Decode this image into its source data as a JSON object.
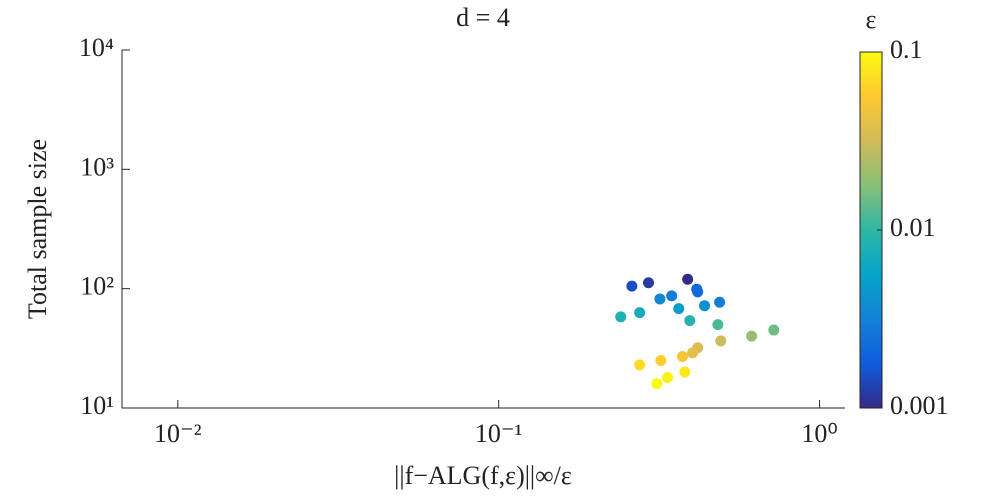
{
  "chart_data": {
    "type": "scatter",
    "title": "d = 4",
    "x_label": "||f−ALG(f,ε)||∞/ε",
    "y_label": "Total sample size",
    "log_x": true,
    "log_y": true,
    "xlim": [
      0.0067,
      1.2
    ],
    "ylim": [
      10,
      10000
    ],
    "xticks": [
      {
        "value": 0.01,
        "label": "10⁻²"
      },
      {
        "value": 0.1,
        "label": "10⁻¹"
      },
      {
        "value": 1,
        "label": "10⁰"
      }
    ],
    "yticks": [
      {
        "value": 10,
        "label": "10¹"
      },
      {
        "value": 100,
        "label": "10²"
      },
      {
        "value": 1000,
        "label": "10³"
      },
      {
        "value": 10000,
        "label": "10⁴"
      }
    ],
    "x": [
      0.388,
      0.293,
      0.26,
      0.414,
      0.417,
      0.346,
      0.318,
      0.488,
      0.438,
      0.364,
      0.275,
      0.24,
      0.394,
      0.482,
      0.72,
      0.614,
      0.492,
      0.417,
      0.402,
      0.374,
      0.32,
      0.275,
      0.38,
      0.336,
      0.311
    ],
    "values": [
      120,
      112,
      105,
      99,
      94,
      87,
      82,
      77,
      72,
      68,
      63,
      58,
      54,
      50,
      45,
      40,
      36.5,
      32,
      29,
      27,
      25,
      23,
      20,
      18,
      16
    ],
    "color_values": [
      0.001,
      0.0012,
      0.0015,
      0.002,
      0.0022,
      0.003,
      0.0035,
      0.003,
      0.004,
      0.005,
      0.007,
      0.008,
      0.009,
      0.012,
      0.015,
      0.02,
      0.03,
      0.035,
      0.04,
      0.05,
      0.06,
      0.07,
      0.08,
      0.09,
      0.1
    ],
    "colorbar": {
      "label": "ε",
      "log": true,
      "lim": [
        0.001,
        0.1
      ],
      "ticks": [
        0.1,
        0.01,
        0.001
      ],
      "colormap": [
        "#352a87",
        "#0f5cdd",
        "#1481d6",
        "#06a4ca",
        "#2eb7a4",
        "#87bf77",
        "#d1bb59",
        "#fec832",
        "#f9fb0e"
      ]
    }
  }
}
